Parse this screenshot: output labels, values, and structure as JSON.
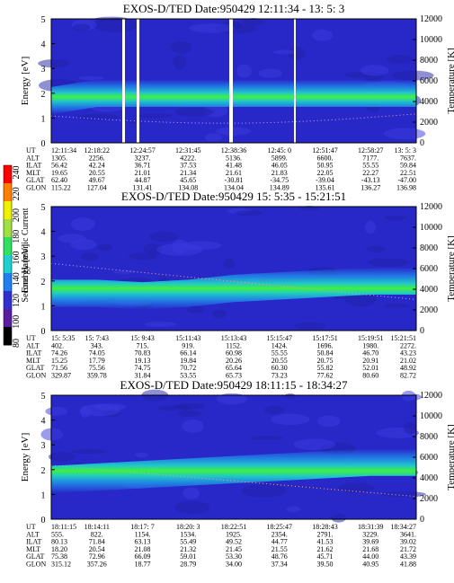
{
  "panels": [
    {
      "title": "EXOS-D/TED    Date:950429  12:11:34 - 13: 5: 3",
      "info_values": [
        [
          "12:11:34",
          "1305.",
          "56.42",
          "19.65",
          "62.40",
          "115.22"
        ],
        [
          "12:18:22",
          "2256.",
          "42.24",
          "20.55",
          "49.67",
          "127.04"
        ],
        [
          "12:24:57",
          "3237.",
          "36.71",
          "21.01",
          "44.87",
          "131.41"
        ],
        [
          "12:31:45",
          "4222.",
          "37.53",
          "21.34",
          "45.65",
          "134.08"
        ],
        [
          "12:38:36",
          "5136.",
          "41.48",
          "21.61",
          "-30.81",
          "134.04"
        ],
        [
          "12:45: 0",
          "5899.",
          "46.05",
          "21.83",
          "-34.75",
          "134.89"
        ],
        [
          "12:51:47",
          "6600.",
          "50.95",
          "22.05",
          "-39.04",
          "135.61"
        ],
        [
          "12:58:27",
          "7177.",
          "55.55",
          "22.27",
          "-43.13",
          "136.27"
        ],
        [
          "13: 5: 3",
          "7637.",
          "59.84",
          "22.51",
          "-47.00",
          "136.98"
        ]
      ]
    },
    {
      "title": "EXOS-D/TED    Date:950429  15: 5:35 - 15:21:51",
      "info_values": [
        [
          "15: 5:35",
          "402.",
          "74.26",
          "15.25",
          "71.56",
          "329.87"
        ],
        [
          "15: 7:43",
          "343.",
          "74.05",
          "17.79",
          "75.56",
          "359.78"
        ],
        [
          "15: 9:43",
          "715.",
          "70.83",
          "19.13",
          "74.75",
          "31.84"
        ],
        [
          "15:11:43",
          "919.",
          "66.14",
          "19.84",
          "70.72",
          "53.55"
        ],
        [
          "15:13:43",
          "1152.",
          "60.98",
          "20.26",
          "65.64",
          "65.73"
        ],
        [
          "15:15:47",
          "1424.",
          "55.55",
          "20.55",
          "60.30",
          "73.23"
        ],
        [
          "15:17:51",
          "1696.",
          "50.84",
          "20.75",
          "55.82",
          "77.62"
        ],
        [
          "15:19:51",
          "1980.",
          "46.70",
          "20.91",
          "52.01",
          "80.60"
        ],
        [
          "15:21:51",
          "2272.",
          "43.23",
          "21.02",
          "48.92",
          "82.72"
        ]
      ]
    },
    {
      "title": "EXOS-D/TED    Date:950429  18:11:15 - 18:34:27",
      "info_values": [
        [
          "18:11:15",
          "555.",
          "80.13",
          "18.20",
          "75.38",
          "315.12"
        ],
        [
          "18:14:11",
          "822.",
          "71.84",
          "20.54",
          "72.96",
          "357.26"
        ],
        [
          "18:17: 7",
          "1154.",
          "63.13",
          "21.08",
          "66.09",
          "18.77"
        ],
        [
          "18:20: 3",
          "1534.",
          "55.49",
          "21.32",
          "59.01",
          "28.79"
        ],
        [
          "18:22:51",
          "1925.",
          "49.52",
          "21.45",
          "53.30",
          "34.00"
        ],
        [
          "18:25:47",
          "2354.",
          "44.77",
          "21.55",
          "48.76",
          "37.34"
        ],
        [
          "18:28:43",
          "2791.",
          "41.53",
          "21.62",
          "45.71",
          "39.50"
        ],
        [
          "18:31:39",
          "3229.",
          "39.69",
          "21.68",
          "44.00",
          "40.95"
        ],
        [
          "18:34:27",
          "3641.",
          "39.02",
          "21.72",
          "43.39",
          "41.88"
        ]
      ]
    }
  ],
  "info_row_labels": [
    "UT",
    "ALT",
    "ILAT",
    "MLT",
    "GLAT",
    "GLON"
  ],
  "y_left_label": "Energy [eV]",
  "y_right_label": "Temperature [K]",
  "y_left_ticks": [
    "0",
    "1",
    "2",
    "3",
    "4",
    "5"
  ],
  "y_right_ticks": [
    "0",
    "2000",
    "4000",
    "6000",
    "8000",
    "10000",
    "12000"
  ],
  "colorbar": {
    "label": "Second Harmonic Current",
    "ticks": [
      "80",
      "100",
      "120",
      "140",
      "160",
      "180",
      "200",
      "220",
      "240"
    ]
  },
  "chart_data": {
    "type": "heatmap",
    "x_label": "UT",
    "y_left": {
      "label": "Energy [eV]",
      "range": [
        0,
        5
      ]
    },
    "y_right": {
      "label": "Temperature [K]",
      "range": [
        0,
        12000
      ]
    },
    "colorbar": {
      "label": "Second Harmonic Current",
      "range": [
        80,
        240
      ]
    },
    "series": [
      {
        "band_center_energy_eV": [
          1.7,
          2.0,
          2.0,
          2.0,
          2.0,
          2.0,
          2.0,
          2.0,
          2.0
        ]
      },
      {
        "band_center_energy_eV": [
          1.5,
          1.5,
          1.4,
          1.5,
          1.7,
          1.8,
          1.9,
          2.0,
          2.0
        ]
      },
      {
        "band_center_energy_eV": [
          1.6,
          1.7,
          1.8,
          1.9,
          2.0,
          2.1,
          2.2,
          2.3,
          2.3
        ]
      }
    ]
  },
  "colors": {
    "background": "#2828c8",
    "band_core": "#40f040",
    "band_mid": "#20c8c8",
    "band_edge": "#2080e8",
    "temperature_dots": "#e8a0a0"
  }
}
